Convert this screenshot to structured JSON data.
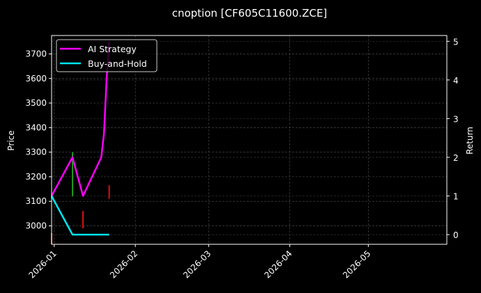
{
  "chart_data": {
    "type": "line",
    "title": "cnoption [CF605C11600.ZCE]",
    "xlabel": "",
    "ylabel": "Price",
    "y2label": "Return",
    "x_ticks": [
      "2026-01",
      "2026-02",
      "2026-03",
      "2026-04",
      "2026-05"
    ],
    "y_ticks": [
      3000,
      3100,
      3200,
      3300,
      3400,
      3500,
      3600,
      3700
    ],
    "y2_ticks": [
      0,
      1,
      2,
      3,
      4,
      5
    ],
    "ylim": [
      2925,
      3775
    ],
    "y2lim": [
      -0.25,
      5.15
    ],
    "xlim": [
      "2025-12-31",
      "2026-05-31"
    ],
    "grid": true,
    "legend_position": "upper left",
    "legend": [
      "AI Strategy",
      "Buy-and-Hold"
    ],
    "series": [
      {
        "name": "AI Strategy",
        "axis": "right",
        "color": "#ff00ff",
        "x": [
          "2025-12-31",
          "2026-01-08",
          "2026-01-12",
          "2026-01-19",
          "2026-01-20",
          "2026-01-21",
          "2026-01-22"
        ],
        "values": [
          1.0,
          2.0,
          1.0,
          2.0,
          2.6,
          4.0,
          5.0
        ]
      },
      {
        "name": "Buy-and-Hold",
        "axis": "right",
        "color": "#00e5ee",
        "x": [
          "2025-12-31",
          "2026-01-08",
          "2026-01-22"
        ],
        "values": [
          1.0,
          0.0,
          0.0
        ]
      }
    ],
    "candles": [
      {
        "date": "2025-12-31",
        "low": 2925,
        "high": 2970,
        "color": "#ff3030"
      },
      {
        "date": "2026-01-08",
        "low": 3120,
        "high": 3300,
        "color": "#1a9c1a"
      },
      {
        "date": "2026-01-12",
        "low": 2990,
        "high": 3060,
        "color": "#e01010"
      },
      {
        "date": "2026-01-22",
        "low": 3110,
        "high": 3165,
        "color": "#e01010"
      }
    ]
  },
  "colors": {
    "background": "#000000",
    "ai_strategy": "#ff00ff",
    "buy_and_hold": "#00e5ee",
    "candle_up": "#1a9c1a",
    "candle_down": "#e01010",
    "grid": "#444444",
    "axis": "#ffffff"
  }
}
